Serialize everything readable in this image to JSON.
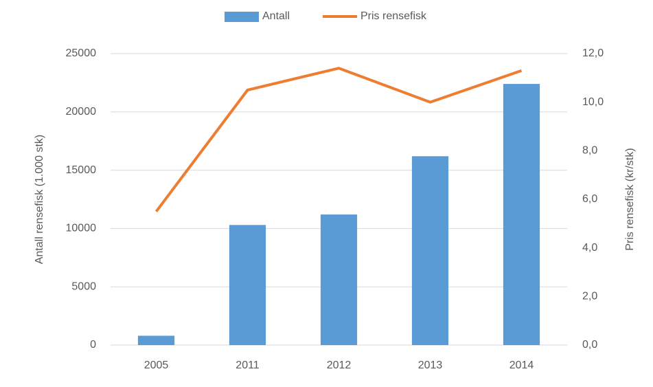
{
  "chart_data": {
    "type": "bar-line",
    "categories": [
      "2005",
      "2011",
      "2012",
      "2013",
      "2014"
    ],
    "series": [
      {
        "name": "Antall",
        "type": "bar",
        "color": "#5b9bd5",
        "values": [
          800,
          10300,
          11200,
          16200,
          22400
        ]
      },
      {
        "name": "Pris rensefisk",
        "type": "line",
        "axis": "y2",
        "color": "#ed7d31",
        "values": [
          5.5,
          10.5,
          11.4,
          10.0,
          11.3
        ]
      }
    ],
    "ylabel": "Antall rensefisk (1.000 stk)",
    "y2label": "Pris rensefisk (kr/stk)",
    "ylim": [
      0,
      25000
    ],
    "yticks": [
      0,
      5000,
      10000,
      15000,
      20000,
      25000
    ],
    "y2lim": [
      0,
      12
    ],
    "y2ticks": [
      {
        "value": 0,
        "label": "0,0"
      },
      {
        "value": 2,
        "label": "2,0"
      },
      {
        "value": 4,
        "label": "4,0"
      },
      {
        "value": 6,
        "label": "6,0"
      },
      {
        "value": 8,
        "label": "8,0"
      },
      {
        "value": 10,
        "label": "10,0"
      },
      {
        "value": 12,
        "label": "12,0"
      }
    ],
    "grid": true,
    "legend": "top"
  }
}
